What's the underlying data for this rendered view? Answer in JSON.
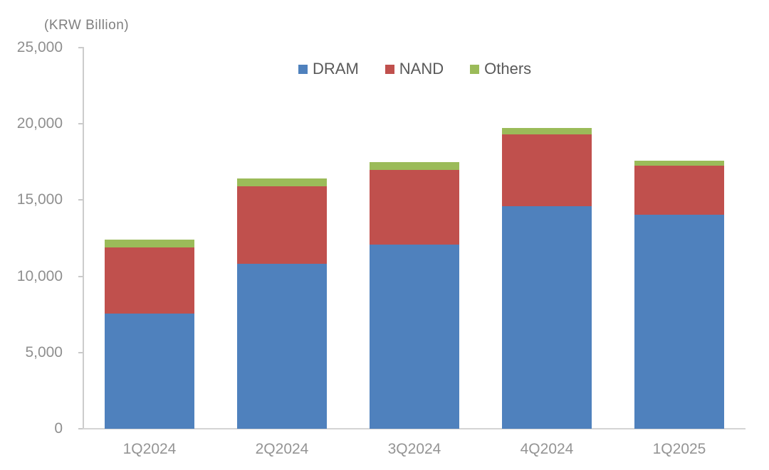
{
  "chart_data": {
    "type": "bar",
    "stacked": true,
    "title": "(KRW Billion)",
    "categories": [
      "1Q2024",
      "2Q2024",
      "3Q2024",
      "4Q2024",
      "1Q2025"
    ],
    "series": [
      {
        "name": "DRAM",
        "color": "#4F81BD",
        "values": [
          7550,
          10800,
          12100,
          14600,
          14050
        ]
      },
      {
        "name": "NAND",
        "color": "#C0504D",
        "values": [
          4350,
          5100,
          4900,
          4700,
          3200
        ]
      },
      {
        "name": "Others",
        "color": "#9BBB59",
        "values": [
          500,
          500,
          500,
          450,
          330
        ]
      }
    ],
    "ylim": [
      0,
      25000
    ],
    "ytick_interval": 5000,
    "yticks": [
      0,
      5000,
      10000,
      15000,
      20000,
      25000
    ],
    "ytick_labels": [
      "0",
      "5,000",
      "10,000",
      "15,000",
      "20,000",
      "25,000"
    ],
    "legend": {
      "position": "top-center",
      "entries": [
        "DRAM",
        "NAND",
        "Others"
      ]
    },
    "grid": false,
    "axis_color": "#cccccc",
    "label_color": "#8f8f8f",
    "legend_text_color": "#595959",
    "title_color": "#7f7f7f"
  }
}
